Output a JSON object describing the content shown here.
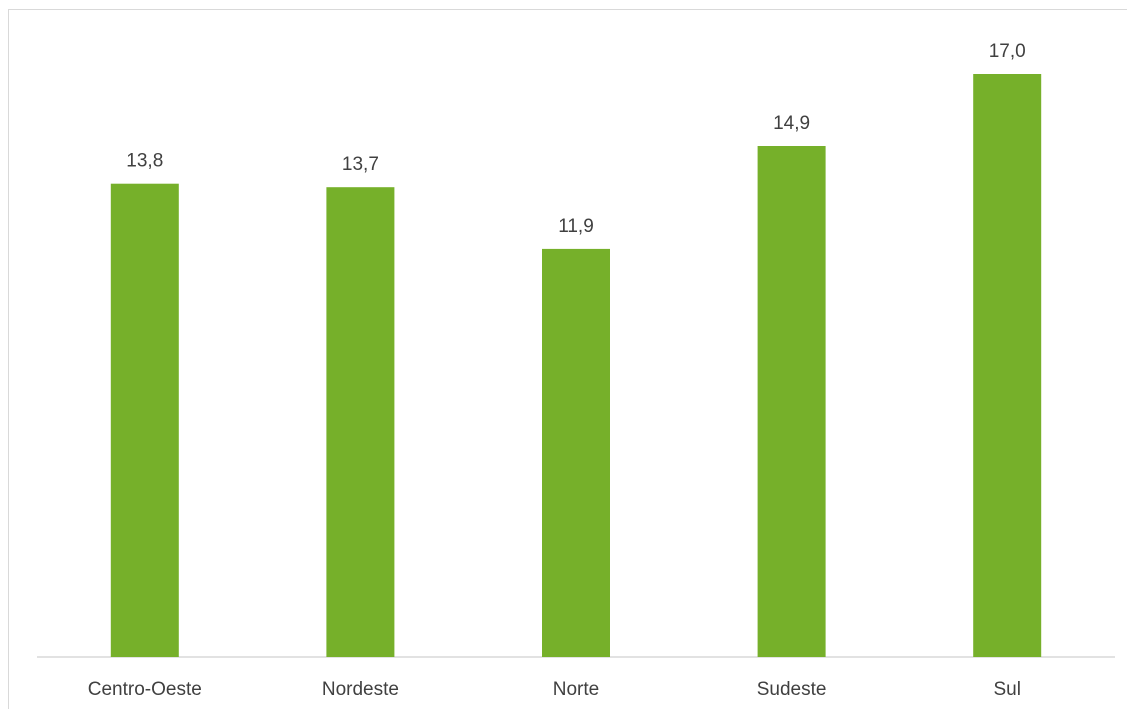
{
  "chart_data": {
    "type": "bar",
    "title": "",
    "xlabel": "",
    "ylabel": "",
    "categories": [
      "Centro-Oeste",
      "Nordeste",
      "Norte",
      "Sudeste",
      "Sul"
    ],
    "values": [
      13.8,
      13.7,
      11.9,
      14.9,
      17.0
    ],
    "value_labels": [
      "13,8",
      "13,7",
      "11,9",
      "14,9",
      "17,0"
    ],
    "ylim": [
      0,
      17.0
    ],
    "grid": false,
    "legend": "none",
    "bar_color": "#76b02a",
    "axis_color": "#d9d9d9",
    "text_color": "#404040"
  }
}
